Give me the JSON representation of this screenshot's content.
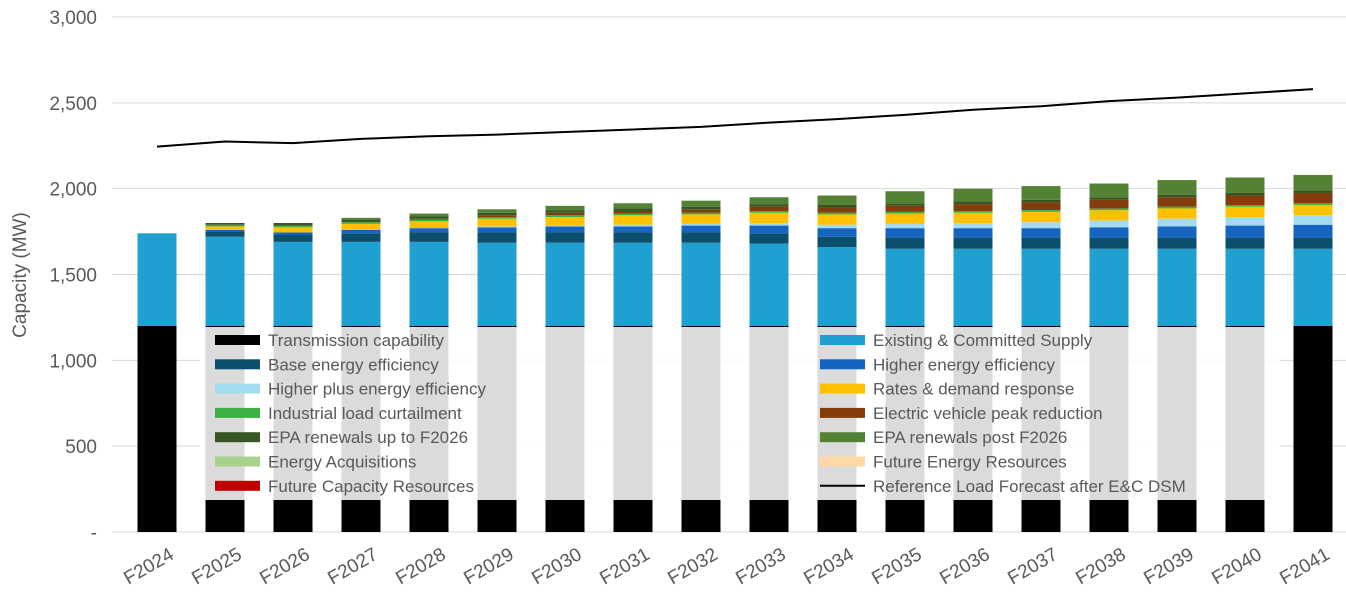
{
  "chart_data": {
    "type": "bar",
    "stacked": true,
    "ylabel": "Capacity (MW)",
    "xlabel": "",
    "ylim": [
      0,
      3000
    ],
    "yticks": [
      0,
      500,
      1000,
      1500,
      2000,
      2500,
      3000
    ],
    "ytick_labels": [
      "-",
      "500",
      "1,000",
      "1,500",
      "2,000",
      "2,500",
      "3,000"
    ],
    "grid": true,
    "legend_position": "inside-bottom",
    "categories": [
      "F2024",
      "F2025",
      "F2026",
      "F2027",
      "F2028",
      "F2029",
      "F2030",
      "F2031",
      "F2032",
      "F2033",
      "F2034",
      "F2035",
      "F2036",
      "F2037",
      "F2038",
      "F2039",
      "F2040",
      "F2041"
    ],
    "series": [
      {
        "name": "Transmission capability",
        "color": "#000000",
        "values": [
          1200,
          1200,
          1200,
          1200,
          1200,
          1200,
          1200,
          1200,
          1200,
          1200,
          1200,
          1200,
          1200,
          1200,
          1200,
          1200,
          1200,
          1200
        ]
      },
      {
        "name": "Existing & Committed Supply",
        "color": "#1fa0d0",
        "values": [
          540,
          520,
          490,
          490,
          490,
          485,
          485,
          485,
          485,
          480,
          460,
          450,
          450,
          450,
          450,
          450,
          450,
          450
        ]
      },
      {
        "name": "Base energy efficiency",
        "color": "#0b4f6c",
        "values": [
          0,
          30,
          40,
          50,
          55,
          60,
          60,
          60,
          60,
          60,
          60,
          65,
          65,
          65,
          65,
          65,
          65,
          65
        ]
      },
      {
        "name": "Higher energy efficiency",
        "color": "#1565c0",
        "values": [
          0,
          10,
          15,
          20,
          25,
          30,
          35,
          35,
          40,
          45,
          50,
          55,
          55,
          55,
          60,
          65,
          70,
          75
        ]
      },
      {
        "name": "Higher plus energy efficiency",
        "color": "#a5dbf0",
        "values": [
          0,
          0,
          0,
          0,
          0,
          5,
          5,
          10,
          10,
          15,
          20,
          25,
          30,
          35,
          40,
          45,
          50,
          55
        ]
      },
      {
        "name": "Rates & demand response",
        "color": "#ffc000",
        "values": [
          0,
          20,
          30,
          35,
          40,
          45,
          50,
          55,
          55,
          60,
          60,
          60,
          60,
          60,
          60,
          60,
          60,
          60
        ]
      },
      {
        "name": "Industrial load curtailment",
        "color": "#3cb043",
        "values": [
          0,
          10,
          10,
          10,
          10,
          10,
          10,
          10,
          10,
          10,
          10,
          10,
          10,
          10,
          10,
          10,
          10,
          10
        ]
      },
      {
        "name": "Electric vehicle peak reduction",
        "color": "#843c0c",
        "values": [
          0,
          0,
          0,
          0,
          5,
          10,
          15,
          15,
          20,
          25,
          30,
          35,
          40,
          45,
          50,
          55,
          55,
          60
        ]
      },
      {
        "name": "EPA renewals up to F2026",
        "color": "#375623",
        "values": [
          0,
          10,
          15,
          15,
          15,
          15,
          15,
          15,
          15,
          15,
          15,
          15,
          15,
          15,
          15,
          15,
          15,
          15
        ]
      },
      {
        "name": "EPA renewals post F2026",
        "color": "#548235",
        "values": [
          0,
          0,
          0,
          10,
          15,
          20,
          25,
          30,
          35,
          40,
          55,
          70,
          75,
          80,
          80,
          85,
          90,
          90
        ]
      },
      {
        "name": "Energy Acquisitions",
        "color": "#a9d18e",
        "values": [
          0,
          0,
          0,
          0,
          0,
          0,
          0,
          0,
          0,
          0,
          0,
          0,
          0,
          0,
          0,
          0,
          0,
          0
        ]
      },
      {
        "name": "Future Energy Resources",
        "color": "#ffd8a8",
        "values": [
          0,
          0,
          0,
          0,
          0,
          0,
          0,
          0,
          0,
          0,
          0,
          0,
          0,
          0,
          0,
          0,
          0,
          0
        ]
      },
      {
        "name": "Future Capacity Resources",
        "color": "#c00000",
        "values": [
          0,
          0,
          0,
          0,
          0,
          0,
          0,
          0,
          0,
          0,
          0,
          0,
          0,
          0,
          0,
          0,
          0,
          0
        ]
      },
      {
        "name": "Reference Load Forecast after E&C DSM",
        "type": "line",
        "color": "#000000",
        "values": [
          2245,
          2275,
          2265,
          2290,
          2305,
          2315,
          2330,
          2345,
          2360,
          2385,
          2405,
          2430,
          2460,
          2480,
          2510,
          2530,
          2555,
          2580
        ]
      }
    ]
  }
}
